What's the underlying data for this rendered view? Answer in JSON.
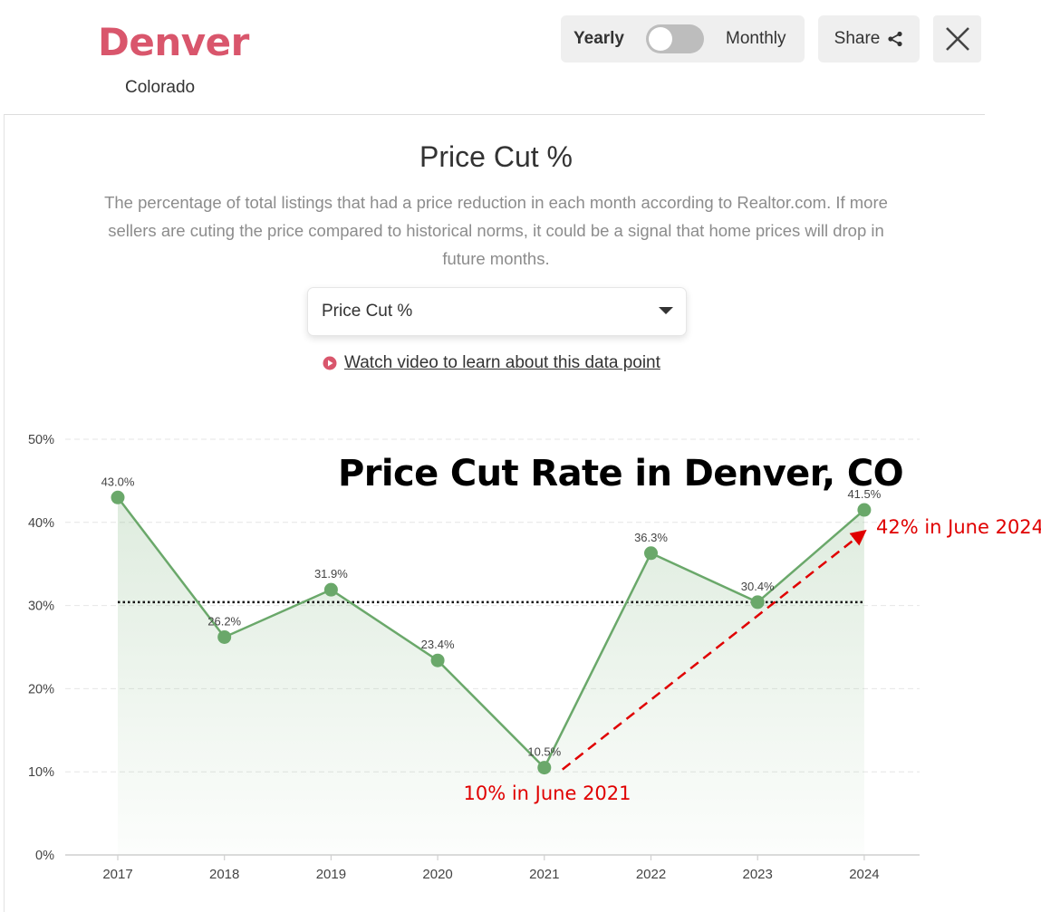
{
  "header": {
    "city": "Denver",
    "state": "Colorado",
    "toggle": {
      "left_label": "Yearly",
      "right_label": "Monthly",
      "selected": "Yearly"
    },
    "share_label": "Share"
  },
  "section": {
    "title": "Price Cut %",
    "description": "The percentage of total listings that had a price reduction in each month according to Realtor.com. If more sellers are cuting the price compared to historical norms, it could be a signal that home prices will drop in future months.",
    "dropdown_value": "Price Cut %",
    "video_link": "Watch video to learn about this data point"
  },
  "colors": {
    "brand": "#d9566c",
    "line": "#6aa86a",
    "annotation": "#e00000"
  },
  "chart_data": {
    "type": "line",
    "title": "Price Cut Rate in Denver, CO",
    "categories": [
      "2017",
      "2018",
      "2019",
      "2020",
      "2021",
      "2022",
      "2023",
      "2024"
    ],
    "values": [
      43.0,
      26.2,
      31.9,
      23.4,
      10.5,
      36.3,
      30.4,
      41.5
    ],
    "data_labels": [
      "43.0%",
      "26.2%",
      "31.9%",
      "23.4%",
      "10.5%",
      "36.3%",
      "30.4%",
      "41.5%"
    ],
    "ylim": [
      0,
      50
    ],
    "yticks": [
      0,
      10,
      20,
      30,
      40,
      50
    ],
    "ytick_labels": [
      "0%",
      "10%",
      "20%",
      "30%",
      "40%",
      "50%"
    ],
    "reference_line": {
      "value": 30.4,
      "style": "dotted"
    },
    "grid": true,
    "annotations": [
      {
        "text": "10% in June 2021",
        "anchor": "2021",
        "value": 10.5
      },
      {
        "text": "42% in June 2024",
        "anchor": "2024",
        "value": 41.5
      }
    ],
    "trend_arrow": {
      "from": {
        "category": "2021",
        "value": 10.5
      },
      "to": {
        "category": "2024",
        "value": 41.5
      }
    }
  }
}
